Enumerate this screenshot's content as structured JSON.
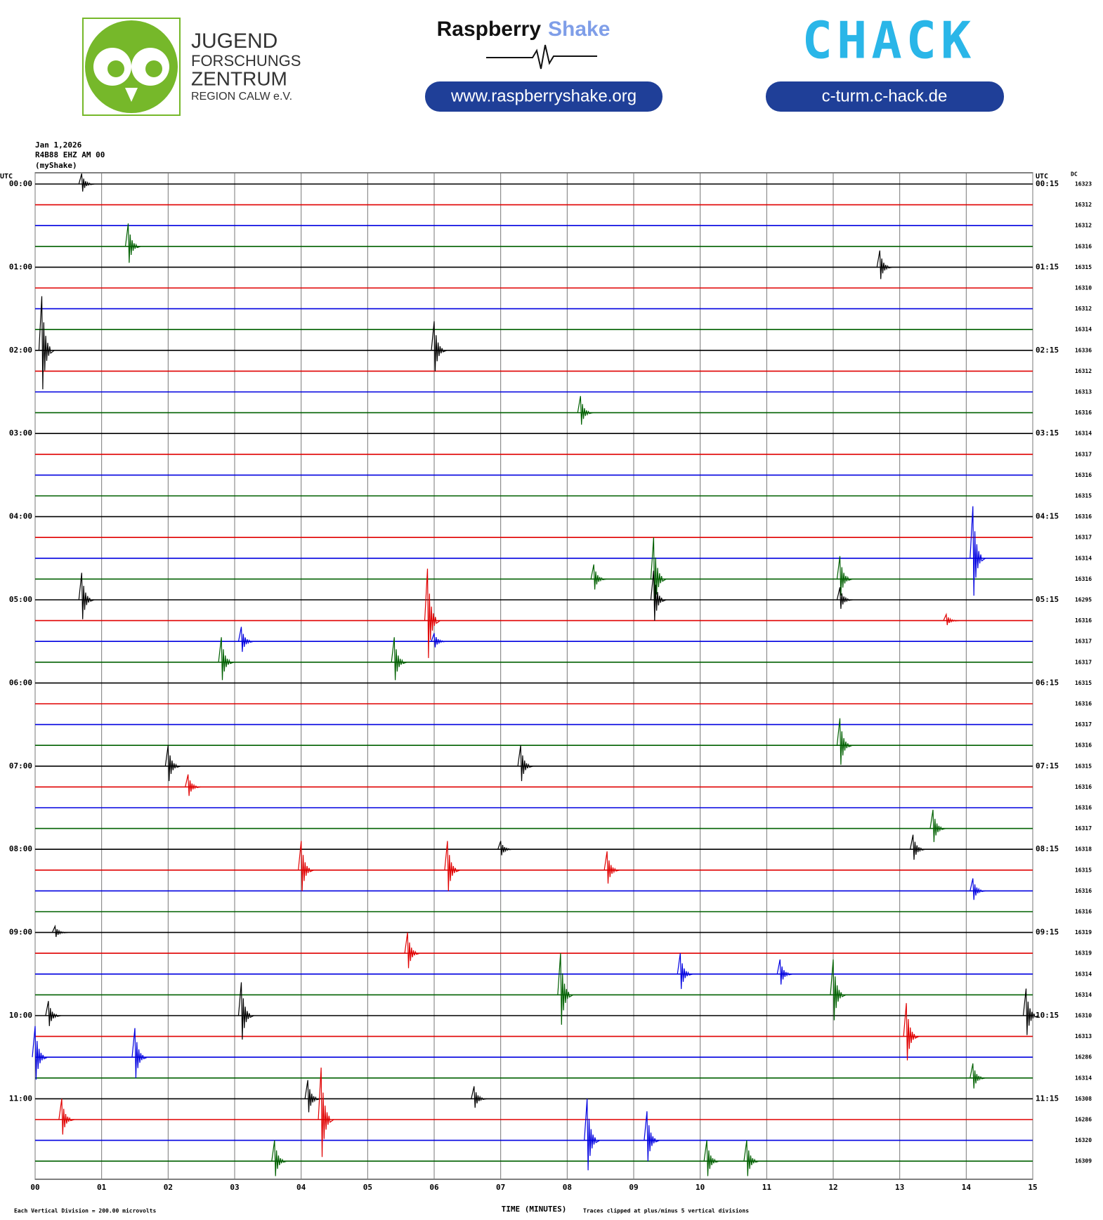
{
  "header": {
    "logo_left": [
      "JUGEND",
      "FORSCHUNGS",
      "ZENTRUM",
      "REGION CALW e.V."
    ],
    "brand_word1": "Raspberry",
    "brand_word2": "Shake",
    "brand_url": "www.raspberryshake.org",
    "logo_right": "CHACK",
    "right_url": "c-turm.c-hack.de"
  },
  "chart_data": {
    "type": "helicorder",
    "date": "Jan 1,2026",
    "station": "R4B88 EHZ AM 00",
    "network": "(myShake)",
    "left_axis_label": "UTC",
    "right_axis_label": "UTC",
    "dc_label": "DC",
    "xlabel": "TIME (MINUTES)",
    "footer_left": "Each Vertical Division =  200.00 microvolts",
    "footer_right": "Traces clipped at plus/minus 5 vertical divisions",
    "xlim": [
      0,
      15
    ],
    "xticks": [
      {
        "value": 0,
        "label": "00"
      },
      {
        "value": 1,
        "label": "01"
      },
      {
        "value": 2,
        "label": "02"
      },
      {
        "value": 3,
        "label": "03"
      },
      {
        "value": 4,
        "label": "04"
      },
      {
        "value": 5,
        "label": "05"
      },
      {
        "value": 6,
        "label": "06"
      },
      {
        "value": 7,
        "label": "07"
      },
      {
        "value": 8,
        "label": "08"
      },
      {
        "value": 9,
        "label": "09"
      },
      {
        "value": 10,
        "label": "10"
      },
      {
        "value": 11,
        "label": "11"
      },
      {
        "value": 12,
        "label": "12"
      },
      {
        "value": 13,
        "label": "13"
      },
      {
        "value": 14,
        "label": "14"
      },
      {
        "value": 15,
        "label": "15"
      }
    ],
    "colors": [
      "#000000",
      "#e00000",
      "#0000e0",
      "#006000"
    ],
    "left_labels": [
      "00:00",
      null,
      null,
      null,
      "01:00",
      null,
      null,
      null,
      "02:00",
      null,
      null,
      null,
      "03:00",
      null,
      null,
      null,
      "04:00",
      null,
      null,
      null,
      "05:00",
      null,
      null,
      null,
      "06:00",
      null,
      null,
      null,
      "07:00",
      null,
      null,
      null,
      "08:00",
      null,
      null,
      null,
      "09:00",
      null,
      null,
      null,
      "10:00",
      null,
      null,
      null,
      "11:00",
      null,
      null,
      null
    ],
    "right_labels": [
      "00:15",
      null,
      null,
      null,
      "01:15",
      null,
      null,
      null,
      "02:15",
      null,
      null,
      null,
      "03:15",
      null,
      null,
      null,
      "04:15",
      null,
      null,
      null,
      "05:15",
      null,
      null,
      null,
      "06:15",
      null,
      null,
      null,
      "07:15",
      null,
      null,
      null,
      "08:15",
      null,
      null,
      null,
      "09:15",
      null,
      null,
      null,
      "10:15",
      null,
      null,
      null,
      "11:15",
      null,
      null,
      null
    ],
    "dc": [
      16323,
      16312,
      16312,
      16316,
      16315,
      16310,
      16312,
      16314,
      16336,
      16312,
      16313,
      16316,
      16314,
      16317,
      16316,
      16315,
      16316,
      16317,
      16314,
      16316,
      16295,
      16316,
      16317,
      16317,
      16315,
      16316,
      16317,
      16316,
      16315,
      16316,
      16316,
      16317,
      16318,
      16315,
      16316,
      16316,
      16319,
      16319,
      16314,
      16314,
      16310,
      16313,
      16286,
      16314,
      16308,
      16286,
      16320,
      16309
    ],
    "events": [
      {
        "row": 0,
        "minute": 0.7,
        "amplitude": 0.5
      },
      {
        "row": 3,
        "minute": 1.4,
        "amplitude": 1.1
      },
      {
        "row": 4,
        "minute": 12.7,
        "amplitude": 0.8
      },
      {
        "row": 8,
        "minute": 0.1,
        "amplitude": 2.6
      },
      {
        "row": 8,
        "minute": 6.0,
        "amplitude": 1.4
      },
      {
        "row": 11,
        "minute": 8.2,
        "amplitude": 0.8
      },
      {
        "row": 18,
        "minute": 14.1,
        "amplitude": 2.5
      },
      {
        "row": 19,
        "minute": 9.3,
        "amplitude": 2.0
      },
      {
        "row": 19,
        "minute": 8.4,
        "amplitude": 0.7
      },
      {
        "row": 19,
        "minute": 12.1,
        "amplitude": 1.1
      },
      {
        "row": 20,
        "minute": 0.7,
        "amplitude": 1.3
      },
      {
        "row": 20,
        "minute": 9.3,
        "amplitude": 1.4
      },
      {
        "row": 20,
        "minute": 12.1,
        "amplitude": 0.6
      },
      {
        "row": 21,
        "minute": 5.9,
        "amplitude": 2.5
      },
      {
        "row": 21,
        "minute": 13.7,
        "amplitude": 0.3
      },
      {
        "row": 22,
        "minute": 3.1,
        "amplitude": 0.7
      },
      {
        "row": 22,
        "minute": 6.0,
        "amplitude": 0.4
      },
      {
        "row": 23,
        "minute": 2.8,
        "amplitude": 1.2
      },
      {
        "row": 23,
        "minute": 5.4,
        "amplitude": 1.2
      },
      {
        "row": 27,
        "minute": 12.1,
        "amplitude": 1.3
      },
      {
        "row": 28,
        "minute": 2.0,
        "amplitude": 1.0
      },
      {
        "row": 28,
        "minute": 7.3,
        "amplitude": 1.0
      },
      {
        "row": 29,
        "minute": 2.3,
        "amplitude": 0.6
      },
      {
        "row": 31,
        "minute": 13.5,
        "amplitude": 0.9
      },
      {
        "row": 32,
        "minute": 13.2,
        "amplitude": 0.7
      },
      {
        "row": 32,
        "minute": 7.0,
        "amplitude": 0.4
      },
      {
        "row": 33,
        "minute": 4.0,
        "amplitude": 1.4
      },
      {
        "row": 33,
        "minute": 6.2,
        "amplitude": 1.4
      },
      {
        "row": 33,
        "minute": 8.6,
        "amplitude": 0.9
      },
      {
        "row": 34,
        "minute": 14.1,
        "amplitude": 0.6
      },
      {
        "row": 36,
        "minute": 0.3,
        "amplitude": 0.3
      },
      {
        "row": 37,
        "minute": 5.6,
        "amplitude": 1.0
      },
      {
        "row": 38,
        "minute": 9.7,
        "amplitude": 1.0
      },
      {
        "row": 38,
        "minute": 11.2,
        "amplitude": 0.7
      },
      {
        "row": 39,
        "minute": 7.9,
        "amplitude": 2.0
      },
      {
        "row": 39,
        "minute": 12.0,
        "amplitude": 1.7
      },
      {
        "row": 40,
        "minute": 0.2,
        "amplitude": 0.7
      },
      {
        "row": 40,
        "minute": 3.1,
        "amplitude": 1.6
      },
      {
        "row": 40,
        "minute": 14.9,
        "amplitude": 1.3
      },
      {
        "row": 41,
        "minute": 13.1,
        "amplitude": 1.6
      },
      {
        "row": 42,
        "minute": 1.5,
        "amplitude": 1.4
      },
      {
        "row": 42,
        "minute": 0.0,
        "amplitude": 1.5
      },
      {
        "row": 43,
        "minute": 14.1,
        "amplitude": 0.7
      },
      {
        "row": 44,
        "minute": 4.1,
        "amplitude": 0.9
      },
      {
        "row": 44,
        "minute": 6.6,
        "amplitude": 0.6
      },
      {
        "row": 45,
        "minute": 0.4,
        "amplitude": 1.0
      },
      {
        "row": 45,
        "minute": 4.3,
        "amplitude": 2.5
      },
      {
        "row": 46,
        "minute": 8.3,
        "amplitude": 2.0
      },
      {
        "row": 46,
        "minute": 9.2,
        "amplitude": 1.4
      },
      {
        "row": 47,
        "minute": 3.6,
        "amplitude": 1.0
      },
      {
        "row": 47,
        "minute": 10.1,
        "amplitude": 1.0
      },
      {
        "row": 47,
        "minute": 10.7,
        "amplitude": 1.0
      }
    ]
  }
}
